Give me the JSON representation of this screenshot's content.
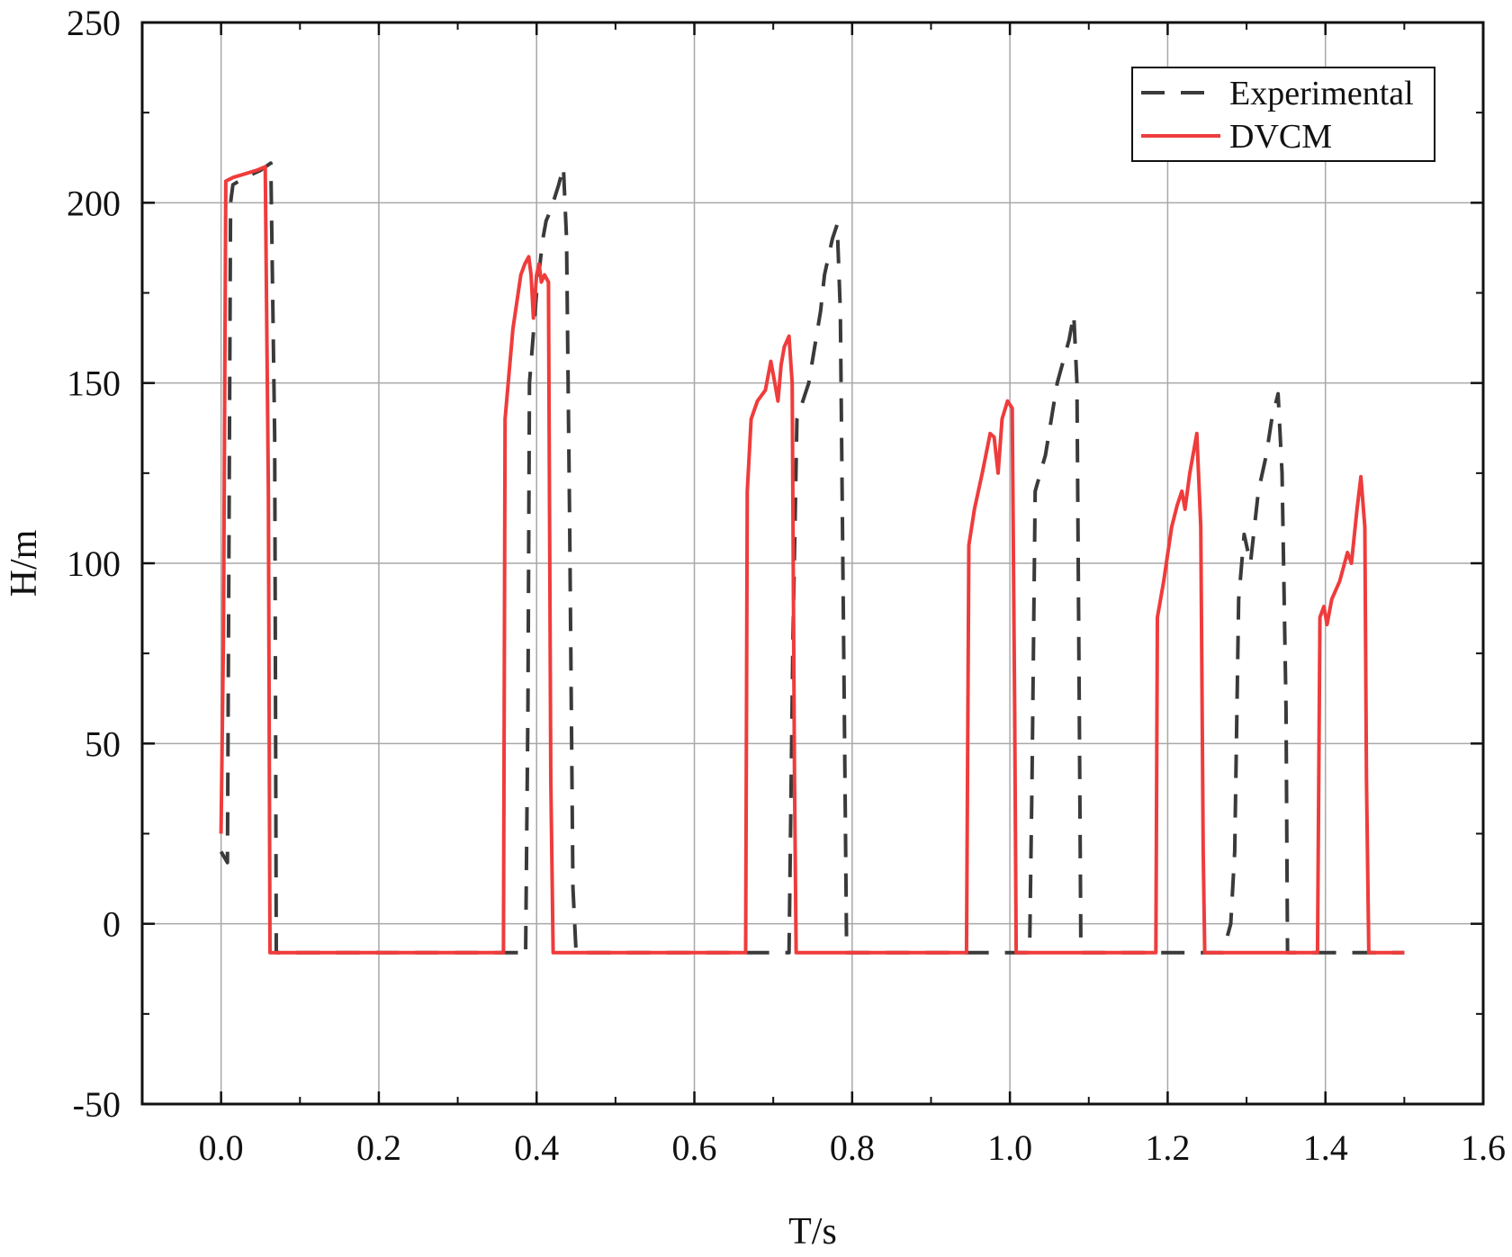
{
  "chart_data": {
    "type": "line",
    "title": "",
    "xlabel": "T/s",
    "ylabel": "H/m",
    "xlim": [
      -0.1,
      1.6
    ],
    "ylim": [
      -50,
      250
    ],
    "xticks": [
      0.0,
      0.2,
      0.4,
      0.6,
      0.8,
      1.0,
      1.2,
      1.4,
      1.6
    ],
    "xtick_labels": [
      "0.0",
      "0.2",
      "0.4",
      "0.6",
      "0.8",
      "1.0",
      "1.2",
      "1.4",
      "1.6"
    ],
    "yticks": [
      -50,
      0,
      50,
      100,
      150,
      200,
      250
    ],
    "ytick_labels": [
      "-50",
      "0",
      "50",
      "100",
      "150",
      "200",
      "250"
    ],
    "grid": true,
    "legend_position": "top-right",
    "series": [
      {
        "name": "Experimental",
        "color": "#3a3a3a",
        "style": "dashed",
        "points": [
          [
            0.0,
            20
          ],
          [
            0.008,
            17
          ],
          [
            0.012,
            200
          ],
          [
            0.015,
            205
          ],
          [
            0.03,
            207
          ],
          [
            0.05,
            209
          ],
          [
            0.063,
            211
          ],
          [
            0.068,
            135
          ],
          [
            0.07,
            -8
          ],
          [
            0.08,
            -8
          ],
          [
            0.36,
            -8
          ],
          [
            0.37,
            -8
          ],
          [
            0.382,
            -8
          ],
          [
            0.386,
            -9
          ],
          [
            0.389,
            60
          ],
          [
            0.391,
            150
          ],
          [
            0.4,
            175
          ],
          [
            0.408,
            190
          ],
          [
            0.412,
            195
          ],
          [
            0.418,
            198
          ],
          [
            0.428,
            205
          ],
          [
            0.434,
            210
          ],
          [
            0.438,
            190
          ],
          [
            0.442,
            110
          ],
          [
            0.446,
            10
          ],
          [
            0.45,
            -8
          ],
          [
            0.46,
            -8
          ],
          [
            0.71,
            -8
          ],
          [
            0.718,
            -8
          ],
          [
            0.72,
            -8
          ],
          [
            0.725,
            80
          ],
          [
            0.73,
            140
          ],
          [
            0.745,
            150
          ],
          [
            0.76,
            170
          ],
          [
            0.765,
            180
          ],
          [
            0.775,
            190
          ],
          [
            0.781,
            194
          ],
          [
            0.785,
            170
          ],
          [
            0.79,
            60
          ],
          [
            0.793,
            -8
          ],
          [
            0.8,
            -8
          ],
          [
            1.02,
            -8
          ],
          [
            1.025,
            -8
          ],
          [
            1.028,
            40
          ],
          [
            1.032,
            120
          ],
          [
            1.045,
            130
          ],
          [
            1.06,
            150
          ],
          [
            1.075,
            162
          ],
          [
            1.081,
            169
          ],
          [
            1.085,
            150
          ],
          [
            1.088,
            60
          ],
          [
            1.09,
            -8
          ],
          [
            1.1,
            -8
          ],
          [
            1.27,
            -8
          ],
          [
            1.28,
            0
          ],
          [
            1.285,
            20
          ],
          [
            1.29,
            90
          ],
          [
            1.297,
            108
          ],
          [
            1.305,
            100
          ],
          [
            1.315,
            120
          ],
          [
            1.325,
            130
          ],
          [
            1.332,
            140
          ],
          [
            1.34,
            147
          ],
          [
            1.345,
            125
          ],
          [
            1.35,
            60
          ],
          [
            1.352,
            -8
          ],
          [
            1.36,
            -8
          ],
          [
            1.5,
            -8
          ]
        ]
      },
      {
        "name": "DVCM",
        "color": "#ef3c3c",
        "style": "solid",
        "points": [
          [
            0.0,
            25
          ],
          [
            0.003,
            80
          ],
          [
            0.006,
            206
          ],
          [
            0.015,
            207
          ],
          [
            0.03,
            208
          ],
          [
            0.045,
            209
          ],
          [
            0.056,
            210
          ],
          [
            0.06,
            120
          ],
          [
            0.062,
            -8
          ],
          [
            0.08,
            -8
          ],
          [
            0.3,
            -8
          ],
          [
            0.355,
            -8
          ],
          [
            0.358,
            -8
          ],
          [
            0.36,
            140
          ],
          [
            0.37,
            165
          ],
          [
            0.38,
            180
          ],
          [
            0.385,
            183
          ],
          [
            0.39,
            185
          ],
          [
            0.393,
            180
          ],
          [
            0.396,
            168
          ],
          [
            0.4,
            180
          ],
          [
            0.403,
            183
          ],
          [
            0.406,
            178
          ],
          [
            0.41,
            180
          ],
          [
            0.415,
            178
          ],
          [
            0.418,
            40
          ],
          [
            0.421,
            -8
          ],
          [
            0.44,
            -8
          ],
          [
            0.6,
            -8
          ],
          [
            0.66,
            -8
          ],
          [
            0.665,
            -8
          ],
          [
            0.667,
            120
          ],
          [
            0.672,
            140
          ],
          [
            0.68,
            145
          ],
          [
            0.69,
            148
          ],
          [
            0.697,
            156
          ],
          [
            0.702,
            150
          ],
          [
            0.706,
            145
          ],
          [
            0.71,
            155
          ],
          [
            0.714,
            160
          ],
          [
            0.72,
            163
          ],
          [
            0.724,
            150
          ],
          [
            0.727,
            40
          ],
          [
            0.729,
            -8
          ],
          [
            0.74,
            -8
          ],
          [
            0.9,
            -8
          ],
          [
            0.945,
            -8
          ],
          [
            0.948,
            105
          ],
          [
            0.955,
            115
          ],
          [
            0.965,
            125
          ],
          [
            0.975,
            136
          ],
          [
            0.98,
            135
          ],
          [
            0.985,
            125
          ],
          [
            0.99,
            140
          ],
          [
            0.997,
            145
          ],
          [
            1.003,
            143
          ],
          [
            1.006,
            60
          ],
          [
            1.008,
            -8
          ],
          [
            1.03,
            -8
          ],
          [
            1.15,
            -8
          ],
          [
            1.185,
            -8
          ],
          [
            1.187,
            85
          ],
          [
            1.195,
            95
          ],
          [
            1.205,
            110
          ],
          [
            1.212,
            116
          ],
          [
            1.218,
            120
          ],
          [
            1.222,
            115
          ],
          [
            1.228,
            125
          ],
          [
            1.237,
            136
          ],
          [
            1.242,
            110
          ],
          [
            1.245,
            20
          ],
          [
            1.247,
            -8
          ],
          [
            1.26,
            -8
          ],
          [
            1.36,
            -8
          ],
          [
            1.39,
            -8
          ],
          [
            1.393,
            85
          ],
          [
            1.398,
            88
          ],
          [
            1.402,
            83
          ],
          [
            1.408,
            90
          ],
          [
            1.418,
            95
          ],
          [
            1.428,
            103
          ],
          [
            1.433,
            100
          ],
          [
            1.44,
            115
          ],
          [
            1.445,
            124
          ],
          [
            1.45,
            110
          ],
          [
            1.452,
            40
          ],
          [
            1.455,
            -8
          ],
          [
            1.47,
            -8
          ],
          [
            1.5,
            -8
          ]
        ]
      }
    ]
  }
}
